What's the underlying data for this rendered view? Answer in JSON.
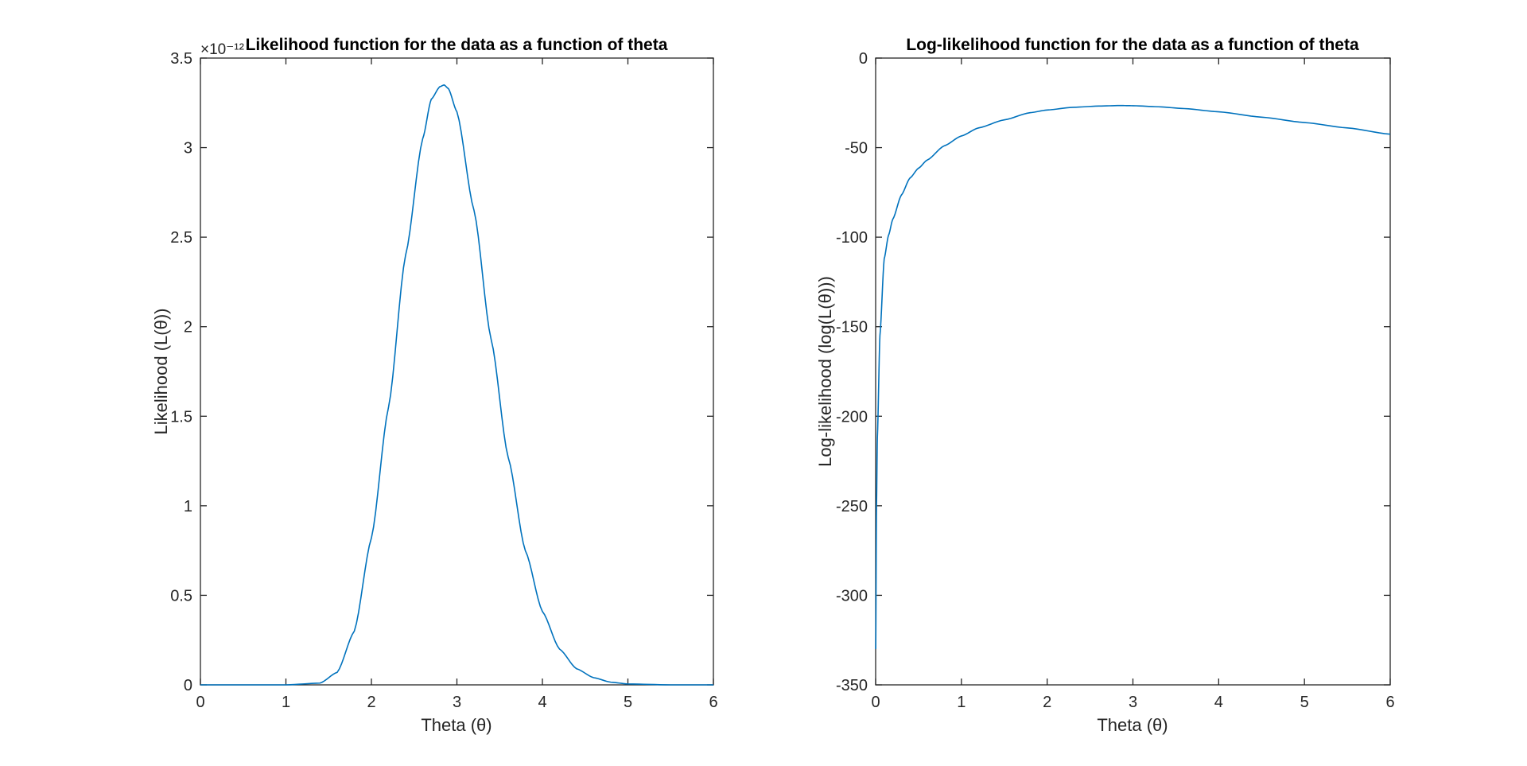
{
  "colors": {
    "series": "#0072BD",
    "axes": "#262626",
    "background": "#ffffff"
  },
  "chart_data": [
    {
      "type": "line",
      "title": "Likelihood function for the data as a function of theta",
      "xlabel": "Theta (θ)",
      "ylabel": "Likelihood (L(θ))",
      "y_exponent_label": "×10⁻¹²",
      "xlim": [
        0,
        6
      ],
      "ylim": [
        0,
        3.5
      ],
      "xticks": [
        0,
        1,
        2,
        3,
        4,
        5,
        6
      ],
      "xtick_labels": [
        "0",
        "1",
        "2",
        "3",
        "4",
        "5",
        "6"
      ],
      "yticks": [
        0,
        0.5,
        1,
        1.5,
        2,
        2.5,
        3,
        3.5
      ],
      "ytick_labels": [
        "0",
        "0.5",
        "1",
        "1.5",
        "2",
        "2.5",
        "3",
        "3.5"
      ],
      "grid": false,
      "series": [
        {
          "x": [
            0,
            1.0,
            1.4,
            1.6,
            1.8,
            2.0,
            2.2,
            2.4,
            2.6,
            2.7,
            2.8,
            2.85,
            2.9,
            3.0,
            3.2,
            3.4,
            3.6,
            3.8,
            4.0,
            4.2,
            4.4,
            4.6,
            4.8,
            5.0,
            5.5,
            6.0
          ],
          "y": [
            0,
            0,
            0.01,
            0.07,
            0.3,
            0.82,
            1.55,
            2.4,
            3.05,
            3.27,
            3.34,
            3.35,
            3.33,
            3.2,
            2.65,
            1.93,
            1.27,
            0.75,
            0.41,
            0.2,
            0.09,
            0.04,
            0.015,
            0.005,
            0,
            0
          ]
        }
      ]
    },
    {
      "type": "line",
      "title": "Log-likelihood function for the data as a function of theta",
      "xlabel": "Theta (θ)",
      "ylabel": "Log-likelihood (log(L(θ)))",
      "xlim": [
        0,
        6
      ],
      "ylim": [
        -350,
        0
      ],
      "xticks": [
        0,
        1,
        2,
        3,
        4,
        5,
        6
      ],
      "xtick_labels": [
        "0",
        "1",
        "2",
        "3",
        "4",
        "5",
        "6"
      ],
      "yticks": [
        -350,
        -300,
        -250,
        -200,
        -150,
        -100,
        -50,
        0
      ],
      "ytick_labels": [
        "-350",
        "-300",
        "-250",
        "-200",
        "-150",
        "-100",
        "-50",
        "0"
      ],
      "grid": false,
      "series": [
        {
          "x": [
            0.001,
            0.01,
            0.02,
            0.05,
            0.1,
            0.15,
            0.2,
            0.3,
            0.4,
            0.5,
            0.6,
            0.8,
            1.0,
            1.2,
            1.5,
            1.8,
            2.0,
            2.3,
            2.6,
            2.85,
            3.0,
            3.3,
            3.6,
            4.0,
            4.5,
            5.0,
            5.5,
            6.0
          ],
          "y": [
            -330,
            -250,
            -212,
            -155,
            -112,
            -99,
            -90,
            -76.5,
            -67,
            -61.5,
            -57,
            -49,
            -43.5,
            -39,
            -34.5,
            -30.5,
            -29,
            -27.5,
            -26.8,
            -26.5,
            -26.6,
            -27.2,
            -28.2,
            -30,
            -33,
            -36,
            -39,
            -42.5
          ]
        }
      ]
    }
  ]
}
